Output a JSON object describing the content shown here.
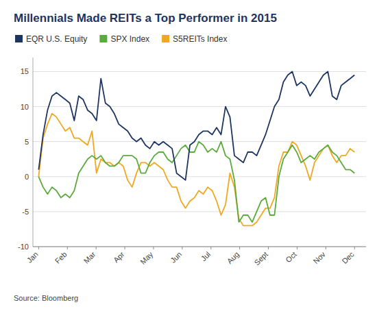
{
  "chart_data": {
    "type": "line",
    "title": "Millennials Made REITs a Top Performer in 2015",
    "source": "Source: Bloomberg",
    "xlim": [
      -0.2,
      11.4
    ],
    "xticks": [
      {
        "value": 0,
        "label": "Jan"
      },
      {
        "value": 1,
        "label": "Feb"
      },
      {
        "value": 2,
        "label": "Mar"
      },
      {
        "value": 3,
        "label": "Apr"
      },
      {
        "value": 4,
        "label": "May"
      },
      {
        "value": 5,
        "label": "Jun"
      },
      {
        "value": 6,
        "label": "Jul"
      },
      {
        "value": 7,
        "label": "Aug"
      },
      {
        "value": 8,
        "label": "Sept"
      },
      {
        "value": 9,
        "label": "Oct"
      },
      {
        "value": 10,
        "label": "Nov"
      },
      {
        "value": 11,
        "label": "Dec"
      }
    ],
    "ylim": [
      -10,
      17
    ],
    "yticks": [
      -10,
      -5,
      0,
      5,
      10,
      15
    ],
    "grid": true,
    "legend": "top",
    "series": [
      {
        "name": "EQR U.S. Equity",
        "color": "#1e3461",
        "values": [
          1.0,
          6.0,
          9.5,
          11.5,
          12.0,
          11.5,
          11.0,
          10.5,
          8.0,
          11.5,
          11.0,
          9.5,
          9.0,
          8.0,
          14.0,
          10.5,
          10.0,
          9.0,
          7.5,
          7.0,
          6.5,
          5.5,
          5.0,
          5.5,
          4.5,
          4.0,
          5.0,
          4.5,
          5.0,
          4.5,
          4.0,
          0.5,
          0.0,
          -0.5,
          4.5,
          5.0,
          6.0,
          6.5,
          6.5,
          6.0,
          7.0,
          6.0,
          10.0,
          8.5,
          3.0,
          2.5,
          2.0,
          3.5,
          3.5,
          3.0,
          4.5,
          6.0,
          8.0,
          10.0,
          11.0,
          13.5,
          14.5,
          15.0,
          13.0,
          13.5,
          13.0,
          11.5,
          12.5,
          13.5,
          14.5,
          15.0,
          11.5,
          11.0,
          13.0,
          13.5,
          14.0,
          14.5
        ]
      },
      {
        "name": "SPX Index",
        "color": "#5aaa3c",
        "values": [
          0.0,
          -1.5,
          -2.5,
          -1.5,
          -2.0,
          -3.0,
          -2.5,
          -3.0,
          -2.0,
          0.5,
          1.5,
          2.5,
          3.0,
          2.5,
          3.0,
          2.0,
          1.5,
          1.5,
          2.0,
          3.0,
          3.0,
          3.0,
          2.5,
          0.5,
          0.5,
          2.0,
          3.0,
          3.5,
          3.5,
          2.5,
          2.0,
          3.0,
          4.0,
          4.5,
          3.5,
          3.5,
          5.0,
          4.5,
          3.5,
          4.0,
          3.5,
          5.0,
          3.0,
          2.5,
          -0.5,
          -6.5,
          -5.5,
          -5.5,
          -6.5,
          -5.0,
          -3.5,
          -3.0,
          -5.5,
          -5.5,
          0.0,
          2.5,
          3.5,
          4.5,
          3.5,
          2.0,
          2.5,
          3.0,
          2.5,
          3.5,
          4.0,
          4.5,
          3.5,
          3.0,
          2.0,
          1.0,
          1.0,
          0.5
        ]
      },
      {
        "name": "S5REITs Index",
        "color": "#f0a820",
        "values": [
          0.0,
          5.5,
          7.5,
          9.0,
          8.5,
          7.5,
          6.5,
          7.0,
          5.5,
          5.5,
          5.0,
          4.5,
          6.5,
          0.5,
          2.5,
          2.0,
          2.0,
          1.5,
          2.0,
          1.5,
          -0.5,
          -1.5,
          0.5,
          2.0,
          2.0,
          1.5,
          2.0,
          1.5,
          1.0,
          -0.5,
          -1.5,
          -1.5,
          -3.5,
          -4.5,
          -3.5,
          -3.0,
          -2.0,
          -2.5,
          -1.5,
          -2.0,
          -3.5,
          -5.5,
          -4.0,
          0.5,
          -1.5,
          -6.0,
          -7.0,
          -7.0,
          -7.0,
          -6.5,
          -5.5,
          -4.5,
          -4.5,
          -3.0,
          1.5,
          3.5,
          3.5,
          5.0,
          4.5,
          3.0,
          1.5,
          -0.5,
          2.0,
          3.0,
          4.0,
          4.5,
          3.0,
          2.0,
          3.0,
          3.0,
          4.0,
          3.5
        ]
      }
    ]
  }
}
